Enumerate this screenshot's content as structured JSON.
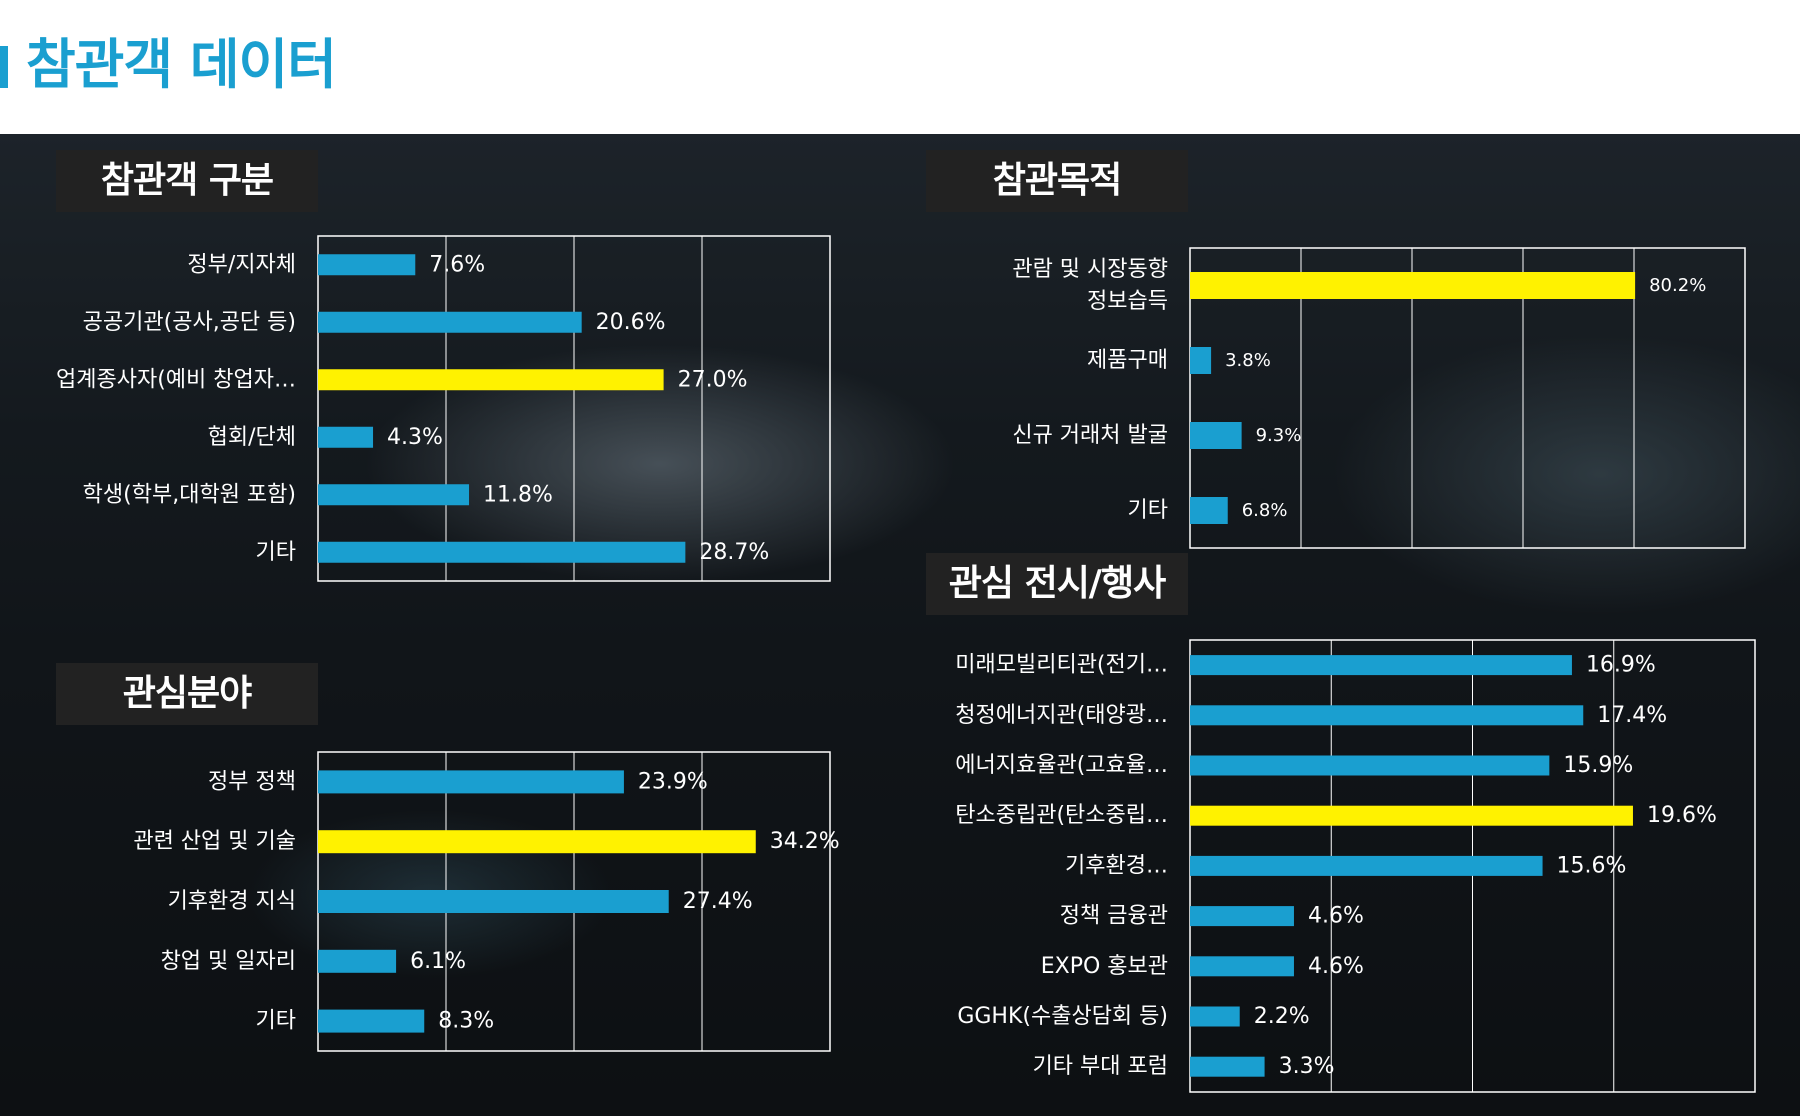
{
  "page": {
    "title": "참관객 데이터"
  },
  "colors": {
    "accent": "#1a9fd0",
    "bar": "#1a9fd0",
    "highlight": "#fff200",
    "title_bg": "#222222",
    "text": "#ffffff"
  },
  "chart_data": [
    {
      "type": "bar",
      "orientation": "horizontal",
      "title": "참관객 구분",
      "categories": [
        "정부/지자체",
        "공공기관(공사,공단 등)",
        "업계종사자(예비 창업자…",
        "협회/단체",
        "학생(학부,대학원 포함)",
        "기타"
      ],
      "values": [
        7.6,
        20.6,
        27.0,
        4.3,
        11.8,
        28.7
      ],
      "value_labels": [
        "7.6%",
        "20.6%",
        "27.0%",
        "4.3%",
        "11.8%",
        "28.7%"
      ],
      "highlight": [
        false,
        false,
        true,
        false,
        false,
        false
      ],
      "xlim": [
        0,
        40
      ],
      "grid": true
    },
    {
      "type": "bar",
      "orientation": "horizontal",
      "title": "참관목적",
      "categories": [
        [
          "관람 및 시장동향",
          "정보습득"
        ],
        "제품구매",
        "신규 거래처 발굴",
        "기타"
      ],
      "values": [
        80.2,
        3.8,
        9.3,
        6.8
      ],
      "value_labels": [
        "80.2%",
        "3.8%",
        "9.3%",
        "6.8%"
      ],
      "highlight": [
        true,
        false,
        false,
        false
      ],
      "xlim": [
        0,
        100
      ],
      "grid": true
    },
    {
      "type": "bar",
      "orientation": "horizontal",
      "title": "관심분야",
      "categories": [
        "정부 정책",
        "관련 산업 및 기술",
        "기후환경 지식",
        "창업 및 일자리",
        "기타"
      ],
      "values": [
        23.9,
        34.2,
        27.4,
        6.1,
        8.3
      ],
      "value_labels": [
        "23.9%",
        "34.2%",
        "27.4%",
        "6.1%",
        "8.3%"
      ],
      "highlight": [
        false,
        true,
        false,
        false,
        false
      ],
      "xlim": [
        0,
        40
      ],
      "grid": true
    },
    {
      "type": "bar",
      "orientation": "horizontal",
      "title": "관심 전시/행사",
      "categories": [
        "미래모빌리티관(전기…",
        "청정에너지관(태양광…",
        "에너지효율관(고효율…",
        "탄소중립관(탄소중립…",
        "기후환경…",
        "정책 금융관",
        "EXPO 홍보관",
        "GGHK(수출상담회 등)",
        "기타 부대 포럼"
      ],
      "values": [
        16.9,
        17.4,
        15.9,
        19.6,
        15.6,
        4.6,
        4.6,
        2.2,
        3.3
      ],
      "value_labels": [
        "16.9%",
        "17.4%",
        "15.9%",
        "19.6%",
        "15.6%",
        "4.6%",
        "4.6%",
        "2.2%",
        "3.3%"
      ],
      "highlight": [
        false,
        false,
        false,
        true,
        false,
        false,
        false,
        false,
        false
      ],
      "xlim": [
        0,
        25
      ],
      "grid": true
    }
  ]
}
